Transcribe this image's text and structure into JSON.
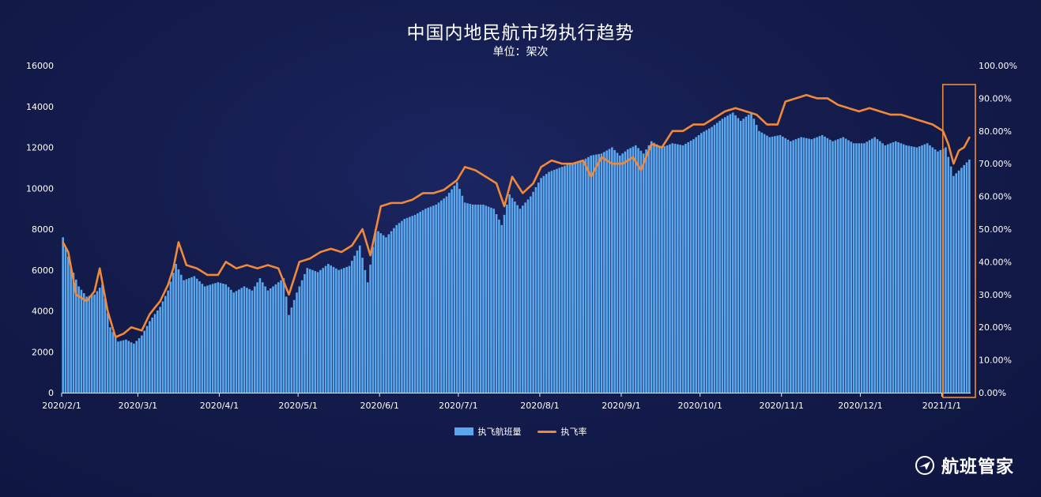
{
  "chart_data": {
    "type": "bar+line",
    "title": "中国内地民航市场执行趋势",
    "subtitle": "单位：架次",
    "x_tick_labels": [
      "2020/2/1",
      "2020/3/1",
      "2020/4/1",
      "2020/5/1",
      "2020/6/1",
      "2020/7/1",
      "2020/8/1",
      "2020/9/1",
      "2020/10/1",
      "2020/11/1",
      "2020/12/1",
      "2021/1/1"
    ],
    "y_left": {
      "ticks": [
        "0",
        "2000",
        "4000",
        "6000",
        "8000",
        "10000",
        "12000",
        "14000",
        "16000"
      ],
      "range": [
        0,
        16000
      ]
    },
    "y_right": {
      "ticks": [
        "0.00%",
        "10.00%",
        "20.00%",
        "30.00%",
        "40.00%",
        "50.00%",
        "60.00%",
        "70.00%",
        "80.00%",
        "90.00%",
        "100.00%"
      ],
      "range": [
        0,
        100
      ]
    },
    "date_range": [
      "2020-02-01",
      "2021-01-11"
    ],
    "series": [
      {
        "name": "执飞航班量",
        "kind": "bar",
        "color": "#5aa7ee",
        "keypoints": [
          [
            "2020-02-01",
            7600
          ],
          [
            "2020-02-04",
            6200
          ],
          [
            "2020-02-07",
            5200
          ],
          [
            "2020-02-10",
            4700
          ],
          [
            "2020-02-13",
            4800
          ],
          [
            "2020-02-16",
            5300
          ],
          [
            "2020-02-19",
            3200
          ],
          [
            "2020-02-22",
            2500
          ],
          [
            "2020-02-25",
            2600
          ],
          [
            "2020-02-28",
            2400
          ],
          [
            "2020-03-02",
            2800
          ],
          [
            "2020-03-05",
            3500
          ],
          [
            "2020-03-09",
            4200
          ],
          [
            "2020-03-12",
            5000
          ],
          [
            "2020-03-15",
            6300
          ],
          [
            "2020-03-18",
            5500
          ],
          [
            "2020-03-22",
            5700
          ],
          [
            "2020-03-26",
            5200
          ],
          [
            "2020-03-31",
            5400
          ],
          [
            "2020-04-03",
            5300
          ],
          [
            "2020-04-06",
            4900
          ],
          [
            "2020-04-10",
            5200
          ],
          [
            "2020-04-13",
            5000
          ],
          [
            "2020-04-16",
            5600
          ],
          [
            "2020-04-19",
            5000
          ],
          [
            "2020-04-22",
            5300
          ],
          [
            "2020-04-25",
            5600
          ],
          [
            "2020-04-27",
            3800
          ],
          [
            "2020-04-30",
            4900
          ],
          [
            "2020-05-04",
            6100
          ],
          [
            "2020-05-08",
            5900
          ],
          [
            "2020-05-12",
            6300
          ],
          [
            "2020-05-16",
            6000
          ],
          [
            "2020-05-20",
            6200
          ],
          [
            "2020-05-24",
            7200
          ],
          [
            "2020-05-27",
            5400
          ],
          [
            "2020-05-30",
            8000
          ],
          [
            "2020-06-03",
            7600
          ],
          [
            "2020-06-07",
            8200
          ],
          [
            "2020-06-10",
            8500
          ],
          [
            "2020-06-14",
            8700
          ],
          [
            "2020-06-18",
            9000
          ],
          [
            "2020-06-22",
            9200
          ],
          [
            "2020-06-26",
            9600
          ],
          [
            "2020-06-30",
            10300
          ],
          [
            "2020-07-03",
            9300
          ],
          [
            "2020-07-06",
            9200
          ],
          [
            "2020-07-10",
            9200
          ],
          [
            "2020-07-14",
            9000
          ],
          [
            "2020-07-17",
            8200
          ],
          [
            "2020-07-20",
            9700
          ],
          [
            "2020-07-24",
            9000
          ],
          [
            "2020-07-28",
            9600
          ],
          [
            "2020-08-01",
            10500
          ],
          [
            "2020-08-04",
            10800
          ],
          [
            "2020-08-08",
            11000
          ],
          [
            "2020-08-12",
            11200
          ],
          [
            "2020-08-16",
            11300
          ],
          [
            "2020-08-20",
            11600
          ],
          [
            "2020-08-24",
            11700
          ],
          [
            "2020-08-28",
            12000
          ],
          [
            "2020-08-31",
            11600
          ],
          [
            "2020-09-03",
            11900
          ],
          [
            "2020-09-06",
            12100
          ],
          [
            "2020-09-09",
            11700
          ],
          [
            "2020-09-12",
            12300
          ],
          [
            "2020-09-16",
            12000
          ],
          [
            "2020-09-20",
            12200
          ],
          [
            "2020-09-24",
            12100
          ],
          [
            "2020-09-28",
            12400
          ],
          [
            "2020-10-01",
            12700
          ],
          [
            "2020-10-05",
            13000
          ],
          [
            "2020-10-09",
            13400
          ],
          [
            "2020-10-13",
            13700
          ],
          [
            "2020-10-16",
            13300
          ],
          [
            "2020-10-20",
            13700
          ],
          [
            "2020-10-23",
            12800
          ],
          [
            "2020-10-27",
            12500
          ],
          [
            "2020-10-31",
            12600
          ],
          [
            "2020-11-04",
            12300
          ],
          [
            "2020-11-08",
            12500
          ],
          [
            "2020-11-12",
            12400
          ],
          [
            "2020-11-16",
            12600
          ],
          [
            "2020-11-20",
            12300
          ],
          [
            "2020-11-24",
            12500
          ],
          [
            "2020-11-28",
            12200
          ],
          [
            "2020-12-02",
            12200
          ],
          [
            "2020-12-06",
            12500
          ],
          [
            "2020-12-10",
            12100
          ],
          [
            "2020-12-14",
            12300
          ],
          [
            "2020-12-18",
            12100
          ],
          [
            "2020-12-22",
            12000
          ],
          [
            "2020-12-26",
            12200
          ],
          [
            "2020-12-30",
            11800
          ],
          [
            "2021-01-02",
            12000
          ],
          [
            "2021-01-05",
            10600
          ],
          [
            "2021-01-08",
            11000
          ],
          [
            "2021-01-11",
            11400
          ]
        ]
      },
      {
        "name": "执飞率",
        "kind": "line",
        "color": "#f08a3a",
        "keypoints": [
          [
            "2020-02-01",
            46
          ],
          [
            "2020-02-03",
            43
          ],
          [
            "2020-02-06",
            30
          ],
          [
            "2020-02-10",
            28
          ],
          [
            "2020-02-13",
            31
          ],
          [
            "2020-02-15",
            38
          ],
          [
            "2020-02-18",
            25
          ],
          [
            "2020-02-21",
            17
          ],
          [
            "2020-02-24",
            18
          ],
          [
            "2020-02-27",
            20
          ],
          [
            "2020-03-02",
            19
          ],
          [
            "2020-03-05",
            24
          ],
          [
            "2020-03-09",
            28
          ],
          [
            "2020-03-12",
            33
          ],
          [
            "2020-03-14",
            38
          ],
          [
            "2020-03-16",
            46
          ],
          [
            "2020-03-19",
            39
          ],
          [
            "2020-03-23",
            38
          ],
          [
            "2020-03-27",
            36
          ],
          [
            "2020-03-31",
            36
          ],
          [
            "2020-04-03",
            40
          ],
          [
            "2020-04-07",
            38
          ],
          [
            "2020-04-11",
            39
          ],
          [
            "2020-04-15",
            38
          ],
          [
            "2020-04-19",
            39
          ],
          [
            "2020-04-23",
            38
          ],
          [
            "2020-04-27",
            30
          ],
          [
            "2020-05-01",
            40
          ],
          [
            "2020-05-05",
            41
          ],
          [
            "2020-05-09",
            43
          ],
          [
            "2020-05-13",
            44
          ],
          [
            "2020-05-17",
            43
          ],
          [
            "2020-05-21",
            45
          ],
          [
            "2020-05-25",
            50
          ],
          [
            "2020-05-28",
            42
          ],
          [
            "2020-06-01",
            57
          ],
          [
            "2020-06-05",
            58
          ],
          [
            "2020-06-09",
            58
          ],
          [
            "2020-06-13",
            59
          ],
          [
            "2020-06-17",
            61
          ],
          [
            "2020-06-21",
            61
          ],
          [
            "2020-06-25",
            62
          ],
          [
            "2020-06-30",
            65
          ],
          [
            "2020-07-03",
            69
          ],
          [
            "2020-07-07",
            68
          ],
          [
            "2020-07-11",
            66
          ],
          [
            "2020-07-15",
            64
          ],
          [
            "2020-07-18",
            57
          ],
          [
            "2020-07-21",
            66
          ],
          [
            "2020-07-25",
            61
          ],
          [
            "2020-07-29",
            64
          ],
          [
            "2020-08-01",
            69
          ],
          [
            "2020-08-05",
            71
          ],
          [
            "2020-08-09",
            70
          ],
          [
            "2020-08-13",
            70
          ],
          [
            "2020-08-17",
            71
          ],
          [
            "2020-08-20",
            66
          ],
          [
            "2020-08-24",
            72
          ],
          [
            "2020-08-28",
            70
          ],
          [
            "2020-09-01",
            70
          ],
          [
            "2020-09-05",
            72
          ],
          [
            "2020-09-08",
            68
          ],
          [
            "2020-09-12",
            76
          ],
          [
            "2020-09-16",
            75
          ],
          [
            "2020-09-20",
            80
          ],
          [
            "2020-09-24",
            80
          ],
          [
            "2020-09-28",
            82
          ],
          [
            "2020-10-02",
            82
          ],
          [
            "2020-10-06",
            84
          ],
          [
            "2020-10-10",
            86
          ],
          [
            "2020-10-14",
            87
          ],
          [
            "2020-10-18",
            86
          ],
          [
            "2020-10-22",
            85
          ],
          [
            "2020-10-26",
            82
          ],
          [
            "2020-10-30",
            82
          ],
          [
            "2020-11-02",
            89
          ],
          [
            "2020-11-06",
            90
          ],
          [
            "2020-11-10",
            91
          ],
          [
            "2020-11-14",
            90
          ],
          [
            "2020-11-18",
            90
          ],
          [
            "2020-11-22",
            88
          ],
          [
            "2020-11-26",
            87
          ],
          [
            "2020-11-30",
            86
          ],
          [
            "2020-12-04",
            87
          ],
          [
            "2020-12-08",
            86
          ],
          [
            "2020-12-12",
            85
          ],
          [
            "2020-12-16",
            85
          ],
          [
            "2020-12-20",
            84
          ],
          [
            "2020-12-24",
            83
          ],
          [
            "2020-12-28",
            82
          ],
          [
            "2021-01-01",
            80
          ],
          [
            "2021-01-03",
            76
          ],
          [
            "2021-01-05",
            70
          ],
          [
            "2021-01-07",
            74
          ],
          [
            "2021-01-09",
            75
          ],
          [
            "2021-01-11",
            78
          ]
        ]
      }
    ],
    "legend": {
      "position": "bottom-center"
    },
    "annotation": {
      "type": "highlight-box",
      "color": "#f08a3a",
      "range": [
        "2021-01-02",
        "2021-01-11"
      ]
    }
  },
  "brand": {
    "name": "航班管家",
    "icon": "airplane-logo-icon"
  }
}
